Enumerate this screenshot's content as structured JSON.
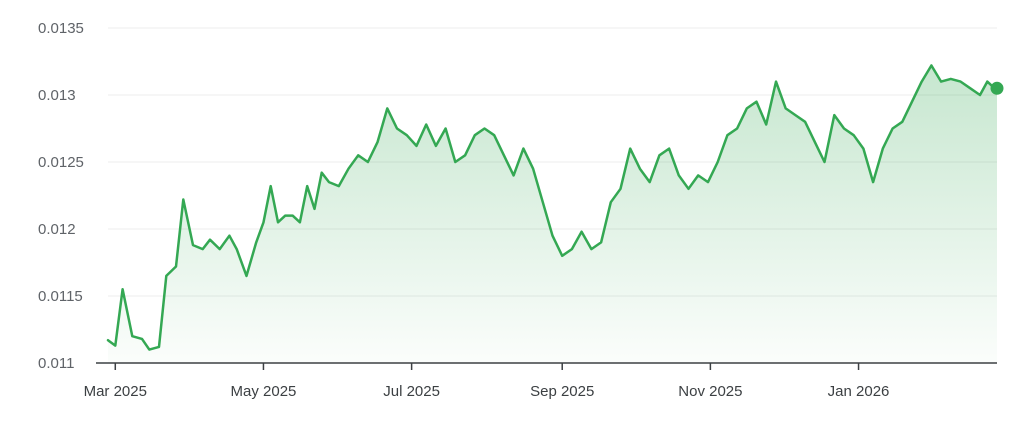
{
  "chart_data": {
    "type": "area",
    "title": "",
    "xlabel": "",
    "ylabel": "",
    "x_range": [
      "2025-02-26",
      "2026-02-27"
    ],
    "ylim": [
      0.011,
      0.0135
    ],
    "y_ticks": [
      0.011,
      0.0115,
      0.012,
      0.0125,
      0.013,
      0.0135
    ],
    "y_tick_labels": [
      "0.011",
      "0.0115",
      "0.012",
      "0.0125",
      "0.013",
      "0.0135"
    ],
    "x_ticks": [
      {
        "date": "2025-03-01",
        "label": "Mar 2025"
      },
      {
        "date": "2025-05-01",
        "label": "May 2025"
      },
      {
        "date": "2025-07-01",
        "label": "Jul 2025"
      },
      {
        "date": "2025-09-01",
        "label": "Sep 2025"
      },
      {
        "date": "2025-11-01",
        "label": "Nov 2025"
      },
      {
        "date": "2026-01-01",
        "label": "Jan 2026"
      }
    ],
    "grid": true,
    "colors": {
      "line": "#34a853",
      "fill": "#34a853"
    },
    "series": [
      {
        "x": [
          "2025-02-26",
          "2025-03-01",
          "2025-03-04",
          "2025-03-08",
          "2025-03-12",
          "2025-03-15",
          "2025-03-19",
          "2025-03-22",
          "2025-03-26",
          "2025-03-29",
          "2025-04-02",
          "2025-04-06",
          "2025-04-09",
          "2025-04-13",
          "2025-04-17",
          "2025-04-20",
          "2025-04-24",
          "2025-04-28",
          "2025-05-01",
          "2025-05-04",
          "2025-05-07",
          "2025-05-10",
          "2025-05-13",
          "2025-05-16",
          "2025-05-19",
          "2025-05-22",
          "2025-05-25",
          "2025-05-28",
          "2025-06-01",
          "2025-06-05",
          "2025-06-09",
          "2025-06-13",
          "2025-06-17",
          "2025-06-21",
          "2025-06-25",
          "2025-06-29",
          "2025-07-03",
          "2025-07-07",
          "2025-07-11",
          "2025-07-15",
          "2025-07-19",
          "2025-07-23",
          "2025-07-27",
          "2025-07-31",
          "2025-08-04",
          "2025-08-08",
          "2025-08-12",
          "2025-08-16",
          "2025-08-20",
          "2025-08-24",
          "2025-08-28",
          "2025-09-01",
          "2025-09-05",
          "2025-09-09",
          "2025-09-13",
          "2025-09-17",
          "2025-09-21",
          "2025-09-25",
          "2025-09-29",
          "2025-10-03",
          "2025-10-07",
          "2025-10-11",
          "2025-10-15",
          "2025-10-19",
          "2025-10-23",
          "2025-10-27",
          "2025-10-31",
          "2025-11-04",
          "2025-11-08",
          "2025-11-12",
          "2025-11-16",
          "2025-11-20",
          "2025-11-24",
          "2025-11-28",
          "2025-12-02",
          "2025-12-06",
          "2025-12-10",
          "2025-12-14",
          "2025-12-18",
          "2025-12-22",
          "2025-12-26",
          "2025-12-30",
          "2026-01-03",
          "2026-01-07",
          "2026-01-11",
          "2026-01-15",
          "2026-01-19",
          "2026-01-23",
          "2026-01-27",
          "2026-01-31",
          "2026-02-04",
          "2026-02-08",
          "2026-02-12",
          "2026-02-16",
          "2026-02-20",
          "2026-02-23",
          "2026-02-26",
          "2026-02-27"
        ],
        "y": [
          0.01117,
          0.01113,
          0.01155,
          0.0112,
          0.01118,
          0.0111,
          0.01112,
          0.01165,
          0.01172,
          0.01222,
          0.01188,
          0.01185,
          0.01192,
          0.01185,
          0.01195,
          0.01185,
          0.01165,
          0.0119,
          0.01205,
          0.01232,
          0.01205,
          0.0121,
          0.0121,
          0.01205,
          0.01232,
          0.01215,
          0.01242,
          0.01235,
          0.01232,
          0.01245,
          0.01255,
          0.0125,
          0.01265,
          0.0129,
          0.01275,
          0.0127,
          0.01262,
          0.01278,
          0.01262,
          0.01275,
          0.0125,
          0.01255,
          0.0127,
          0.01275,
          0.0127,
          0.01255,
          0.0124,
          0.0126,
          0.01245,
          0.0122,
          0.01195,
          0.0118,
          0.01185,
          0.01198,
          0.01185,
          0.0119,
          0.0122,
          0.0123,
          0.0126,
          0.01245,
          0.01235,
          0.01255,
          0.0126,
          0.0124,
          0.0123,
          0.0124,
          0.01235,
          0.0125,
          0.0127,
          0.01275,
          0.0129,
          0.01295,
          0.01278,
          0.0131,
          0.0129,
          0.01285,
          0.0128,
          0.01265,
          0.0125,
          0.01285,
          0.01275,
          0.0127,
          0.0126,
          0.01235,
          0.0126,
          0.01275,
          0.0128,
          0.01295,
          0.0131,
          0.01322,
          0.0131,
          0.01312,
          0.0131,
          0.01305,
          0.013,
          0.0131,
          0.01305,
          0.01305
        ]
      }
    ]
  }
}
